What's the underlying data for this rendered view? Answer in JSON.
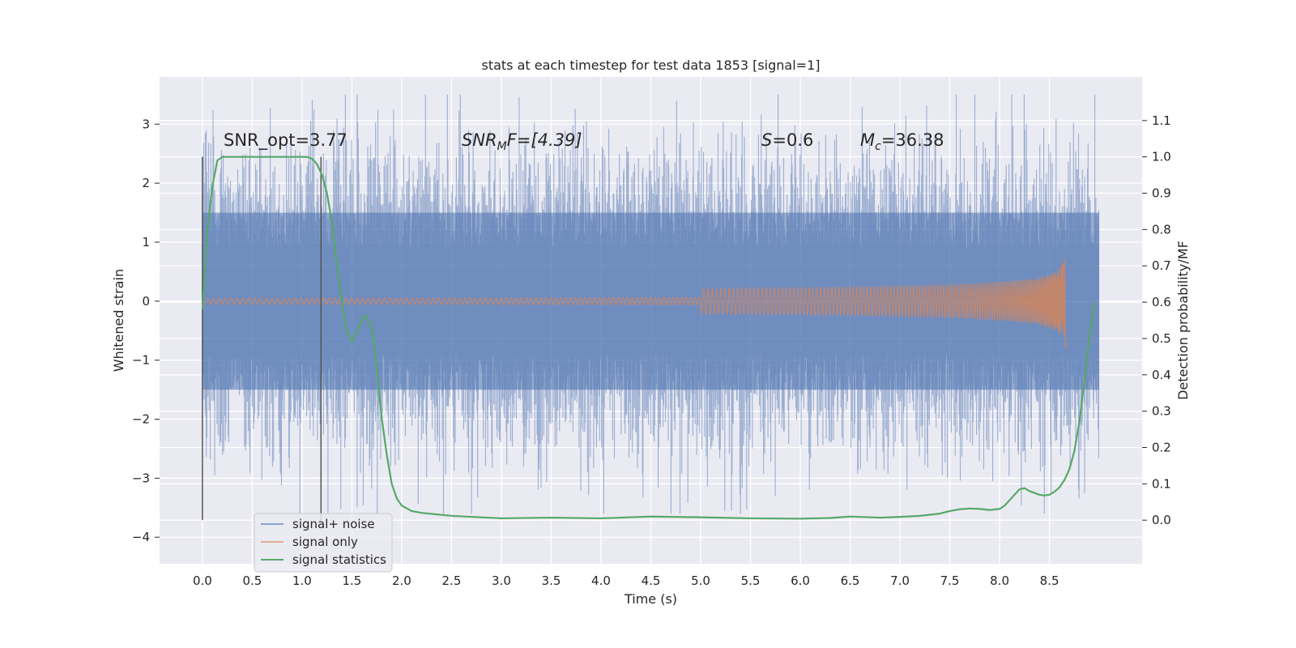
{
  "chart_data": {
    "type": "line",
    "title": "stats at each timestep for test data 1853 [signal=1]",
    "xlabel": "Time (s)",
    "ylabel": "Whitened strain",
    "y2label": "Detection probability/MF",
    "xlim": [
      -0.43,
      9.43
    ],
    "ylim": [
      -4.45,
      3.8
    ],
    "y2lim": [
      -0.12,
      1.22
    ],
    "xticks": [
      "0.0",
      "0.5",
      "1.0",
      "1.5",
      "2.0",
      "2.5",
      "3.0",
      "3.5",
      "4.0",
      "4.5",
      "5.0",
      "5.5",
      "6.0",
      "6.5",
      "7.0",
      "7.5",
      "8.0",
      "8.5"
    ],
    "yticks": [
      "3",
      "2",
      "1",
      "0",
      "−1",
      "−2",
      "−3",
      "−4"
    ],
    "y2ticks": [
      "1.1",
      "1.0",
      "0.9",
      "0.8",
      "0.7",
      "0.6",
      "0.5",
      "0.4",
      "0.3",
      "0.2",
      "0.1",
      "0.0"
    ],
    "grid": true,
    "legend_position": "lower-left",
    "colors": {
      "background": "#eaeaf2",
      "grid": "#ffffff",
      "noise": "#4c72b0",
      "signal": "#dd8452",
      "stats": "#55a868",
      "vlines": "#555555"
    },
    "annotations": {
      "snr_opt": "SNR_opt=3.77",
      "snr_mf_sym": "SNR",
      "snr_mf_sub": "M",
      "snr_mf_rest": "F=[4.39]",
      "s_sym": "S",
      "s_rest": "=0.6",
      "mc_sym": "M",
      "mc_sub": "c",
      "mc_rest": "=36.38"
    },
    "vertical_lines_x": [
      0.0,
      1.19
    ],
    "series": [
      {
        "name": "signal+ noise",
        "kind": "noise",
        "x_range": [
          0.0,
          9.0
        ],
        "core_band": [
          -1.5,
          1.5
        ],
        "extremes": [
          -3.6,
          3.5
        ]
      },
      {
        "name": "signal only",
        "kind": "chirp",
        "x_range": [
          0.0,
          8.68
        ],
        "peak_time": 8.66,
        "peak_amplitude": 0.8
      },
      {
        "name": "signal statistics",
        "kind": "curve",
        "axis": "right",
        "x": [
          0.0,
          0.05,
          0.1,
          0.15,
          0.2,
          0.3,
          0.5,
          0.7,
          0.9,
          1.0,
          1.05,
          1.1,
          1.15,
          1.2,
          1.25,
          1.3,
          1.35,
          1.4,
          1.45,
          1.5,
          1.55,
          1.6,
          1.63,
          1.7,
          1.75,
          1.8,
          1.85,
          1.9,
          1.95,
          2.0,
          2.1,
          2.2,
          2.5,
          3.0,
          3.5,
          4.0,
          4.5,
          5.0,
          5.5,
          6.0,
          6.3,
          6.5,
          6.8,
          7.0,
          7.2,
          7.4,
          7.5,
          7.6,
          7.7,
          7.8,
          7.9,
          8.0,
          8.05,
          8.1,
          8.15,
          8.2,
          8.25,
          8.3,
          8.4,
          8.45,
          8.5,
          8.55,
          8.6,
          8.65,
          8.7,
          8.75,
          8.8,
          8.85,
          8.9,
          8.95
        ],
        "values": [
          0.58,
          0.8,
          0.92,
          0.99,
          1.0,
          1.0,
          1.0,
          1.0,
          1.0,
          1.0,
          1.0,
          0.995,
          0.98,
          0.95,
          0.9,
          0.82,
          0.7,
          0.6,
          0.52,
          0.49,
          0.52,
          0.55,
          0.565,
          0.53,
          0.42,
          0.28,
          0.18,
          0.1,
          0.06,
          0.04,
          0.025,
          0.02,
          0.012,
          0.005,
          0.007,
          0.005,
          0.01,
          0.008,
          0.005,
          0.004,
          0.006,
          0.01,
          0.007,
          0.009,
          0.012,
          0.018,
          0.025,
          0.03,
          0.032,
          0.031,
          0.028,
          0.031,
          0.04,
          0.055,
          0.07,
          0.085,
          0.088,
          0.08,
          0.07,
          0.068,
          0.07,
          0.078,
          0.09,
          0.11,
          0.14,
          0.19,
          0.27,
          0.38,
          0.5,
          0.6
        ]
      }
    ]
  }
}
